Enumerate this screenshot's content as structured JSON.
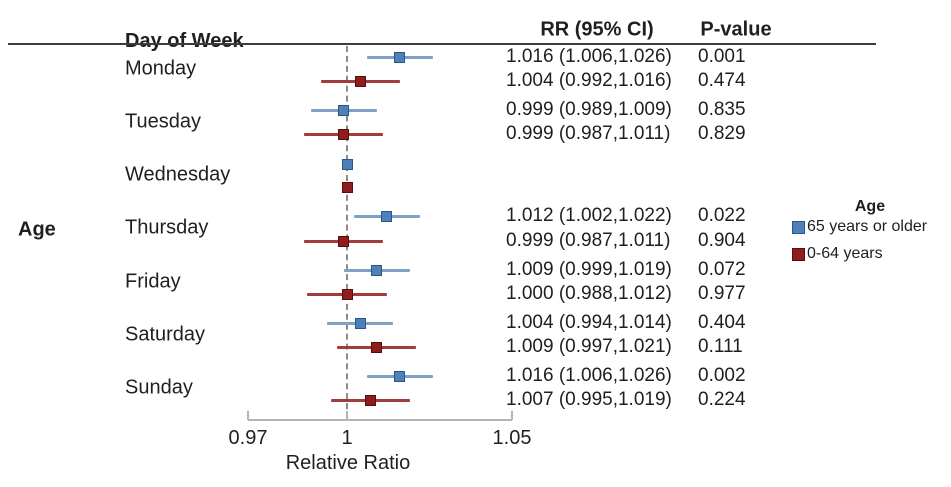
{
  "headers": {
    "day_of_week": "Day of Week",
    "rr_ci": "RR (95% CI)",
    "p_value": "P-value"
  },
  "row_group_label": "Age",
  "legend": {
    "title": "Age",
    "entries": [
      {
        "label": "65 years or older",
        "fill": "#4e81ba",
        "border": "#2a5783",
        "line": "#7fa1c6"
      },
      {
        "label": "0-64 years",
        "fill": "#8e1d1d",
        "border": "#5a0d0d",
        "line": "#a13c3c"
      }
    ]
  },
  "chart_data": {
    "type": "forest",
    "title": "",
    "xlabel": "Relative Ratio",
    "xlim": [
      0.97,
      1.05
    ],
    "reference_line": 1,
    "axis_ticks": [
      {
        "value": 0.97,
        "label": "0.97"
      },
      {
        "value": 1,
        "label": "1"
      },
      {
        "value": 1.05,
        "label": "1.05"
      }
    ],
    "categories": [
      "Monday",
      "Tuesday",
      "Wednesday",
      "Thursday",
      "Friday",
      "Saturday",
      "Sunday"
    ],
    "rows": [
      {
        "day": "Monday",
        "group": "65 years or older",
        "rr": 1.016,
        "lo": 1.006,
        "hi": 1.026,
        "rr_text": "1.016 (1.006,1.026)",
        "p": "0.001"
      },
      {
        "day": "Monday",
        "group": "0-64 years",
        "rr": 1.004,
        "lo": 0.992,
        "hi": 1.016,
        "rr_text": "1.004 (0.992,1.016)",
        "p": "0.474"
      },
      {
        "day": "Tuesday",
        "group": "65 years or older",
        "rr": 0.999,
        "lo": 0.989,
        "hi": 1.009,
        "rr_text": "0.999 (0.989,1.009)",
        "p": "0.835"
      },
      {
        "day": "Tuesday",
        "group": "0-64 years",
        "rr": 0.999,
        "lo": 0.987,
        "hi": 1.011,
        "rr_text": "0.999 (0.987,1.011)",
        "p": "0.829"
      },
      {
        "day": "Wednesday",
        "group": "65 years or older",
        "rr": 1.0,
        "lo": null,
        "hi": null,
        "rr_text": "",
        "p": ""
      },
      {
        "day": "Wednesday",
        "group": "0-64 years",
        "rr": 1.0,
        "lo": null,
        "hi": null,
        "rr_text": "",
        "p": ""
      },
      {
        "day": "Thursday",
        "group": "65 years or older",
        "rr": 1.012,
        "lo": 1.002,
        "hi": 1.022,
        "rr_text": "1.012 (1.002,1.022)",
        "p": "0.022"
      },
      {
        "day": "Thursday",
        "group": "0-64 years",
        "rr": 0.999,
        "lo": 0.987,
        "hi": 1.011,
        "rr_text": "0.999 (0.987,1.011)",
        "p": "0.904"
      },
      {
        "day": "Friday",
        "group": "65 years or older",
        "rr": 1.009,
        "lo": 0.999,
        "hi": 1.019,
        "rr_text": "1.009 (0.999,1.019)",
        "p": "0.072"
      },
      {
        "day": "Friday",
        "group": "0-64 years",
        "rr": 1.0,
        "lo": 0.988,
        "hi": 1.012,
        "rr_text": "1.000 (0.988,1.012)",
        "p": "0.977"
      },
      {
        "day": "Saturday",
        "group": "65 years or older",
        "rr": 1.004,
        "lo": 0.994,
        "hi": 1.014,
        "rr_text": "1.004 (0.994,1.014)",
        "p": "0.404"
      },
      {
        "day": "Saturday",
        "group": "0-64 years",
        "rr": 1.009,
        "lo": 0.997,
        "hi": 1.021,
        "rr_text": "1.009 (0.997,1.021)",
        "p": "0.111"
      },
      {
        "day": "Sunday",
        "group": "65 years or older",
        "rr": 1.016,
        "lo": 1.006,
        "hi": 1.026,
        "rr_text": "1.016 (1.006,1.026)",
        "p": "0.002"
      },
      {
        "day": "Sunday",
        "group": "0-64 years",
        "rr": 1.007,
        "lo": 0.995,
        "hi": 1.019,
        "rr_text": "1.007 (0.995,1.019)",
        "p": "0.224"
      }
    ]
  }
}
